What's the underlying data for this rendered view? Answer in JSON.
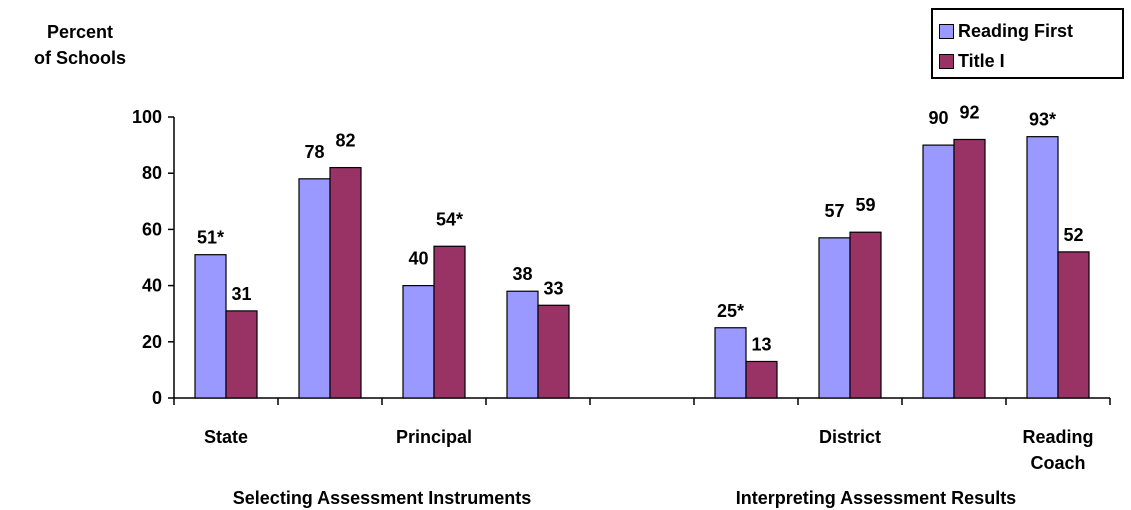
{
  "chart_data": {
    "type": "bar",
    "ylabel_lines": [
      "Percent",
      "of Schools"
    ],
    "ylim": [
      0,
      100
    ],
    "yticks": [
      0,
      20,
      40,
      60,
      80,
      100
    ],
    "legend_position": "top-right",
    "series": [
      {
        "name": "Reading First",
        "color": "#9999ff",
        "values": [
          51,
          78,
          40,
          38,
          null,
          25,
          57,
          90,
          93
        ],
        "labels": [
          "51*",
          "78",
          "40",
          "38",
          "",
          "25*",
          "57",
          "90",
          "93*"
        ]
      },
      {
        "name": "Title I",
        "color": "#993366",
        "values": [
          31,
          82,
          54,
          33,
          null,
          13,
          59,
          92,
          52
        ],
        "labels": [
          "31",
          "82",
          "54*",
          "33",
          "",
          "13",
          "59",
          "92",
          "52"
        ]
      }
    ],
    "category_labels": [
      {
        "slot": 0,
        "lines": [
          "State"
        ]
      },
      {
        "slot": 2,
        "lines": [
          "Principal"
        ]
      },
      {
        "slot": 6,
        "lines": [
          "District"
        ]
      },
      {
        "slot": 8,
        "lines": [
          "Reading",
          "Coach"
        ]
      }
    ],
    "group_labels": [
      "Selecting Assessment Instruments",
      "Interpreting Assessment Results"
    ],
    "grid": false
  }
}
